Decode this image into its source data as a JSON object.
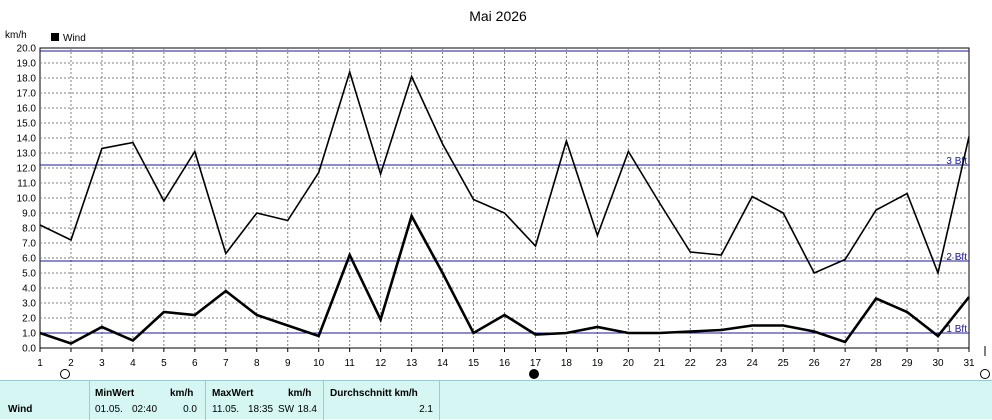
{
  "chart_data": {
    "type": "line",
    "title": "Mai 2026",
    "ylabel": "km/h",
    "ylim": [
      0,
      20
    ],
    "yticks": [
      "0.0",
      "1.0",
      "2.0",
      "3.0",
      "4.0",
      "5.0",
      "6.0",
      "7.0",
      "8.0",
      "9.0",
      "10.0",
      "11.0",
      "12.0",
      "13.0",
      "14.0",
      "15.0",
      "16.0",
      "17.0",
      "18.0",
      "19.0",
      "20.0"
    ],
    "x": [
      "1",
      "2",
      "3",
      "4",
      "5",
      "6",
      "7",
      "8",
      "9",
      "10",
      "11",
      "12",
      "13",
      "14",
      "15",
      "16",
      "17",
      "18",
      "19",
      "20",
      "21",
      "22",
      "23",
      "24",
      "25",
      "26",
      "27",
      "28",
      "29",
      "30",
      "31"
    ],
    "legend": {
      "label": "Wind",
      "position": "top-left"
    },
    "grid": true,
    "series": [
      {
        "name": "Wind",
        "role": "gust",
        "values": [
          8.2,
          7.2,
          13.3,
          13.7,
          9.8,
          13.1,
          6.3,
          9.0,
          8.5,
          11.7,
          18.4,
          11.6,
          18.1,
          13.6,
          9.9,
          9.0,
          6.8,
          13.8,
          7.5,
          13.1,
          9.7,
          6.4,
          6.2,
          10.1,
          9.0,
          5.0,
          5.9,
          9.2,
          10.3,
          5.0,
          14.1
        ]
      },
      {
        "name": "Wind",
        "role": "average",
        "values": [
          1.0,
          0.3,
          1.4,
          0.5,
          2.4,
          2.2,
          3.8,
          2.2,
          1.5,
          0.8,
          6.2,
          1.9,
          8.8,
          5.0,
          1.0,
          2.2,
          0.9,
          1.0,
          1.4,
          1.0,
          1.0,
          1.1,
          1.2,
          1.5,
          1.5,
          1.1,
          0.4,
          3.3,
          2.4,
          0.8,
          3.4
        ]
      }
    ],
    "reference_lines": [
      {
        "label": "3 Bft",
        "value": 12.2
      },
      {
        "label": "2 Bft",
        "value": 5.8
      },
      {
        "label": "1 Bft",
        "value": 1.0
      },
      {
        "label": "",
        "value": 19.8
      }
    ]
  },
  "stats": {
    "row_label": "Wind",
    "min_header": "MinWert",
    "min_unit": "km/h",
    "min_date": "01.05.",
    "min_time": "02:40",
    "min_value": "0.0",
    "max_header": "MaxWert",
    "max_unit": "km/h",
    "max_date": "11.05.",
    "max_time": "18:35",
    "max_dir": "SW",
    "max_value": "18.4",
    "avg_header": "Durchschnitt km/h",
    "avg_value": "2.1"
  },
  "colors": {
    "line": "#000000",
    "reference": "#1a1aa0",
    "grid": "#808080",
    "stats_bg": "#d6f6f3"
  }
}
